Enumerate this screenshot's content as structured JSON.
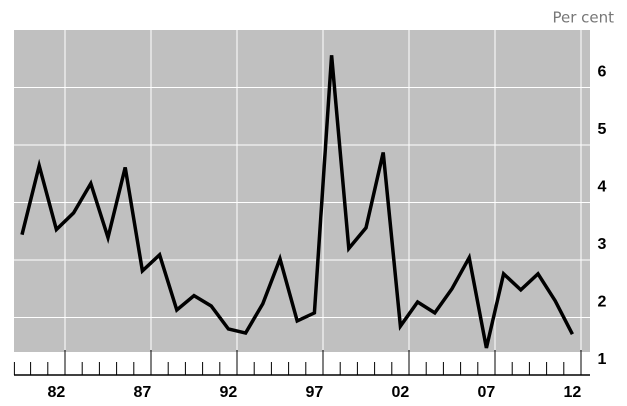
{
  "chart_data": {
    "type": "line",
    "y_label": "Per cent",
    "categories": [
      null,
      null,
      "82",
      null,
      null,
      null,
      null,
      "87",
      null,
      null,
      null,
      null,
      "92",
      null,
      null,
      null,
      null,
      "97",
      null,
      null,
      null,
      null,
      "02",
      null,
      null,
      null,
      null,
      "07",
      null,
      null,
      null,
      null,
      "12"
    ],
    "series": [
      {
        "color": "#000000",
        "values": [
          3.44,
          4.64,
          3.53,
          3.82,
          4.33,
          3.39,
          4.61,
          2.81,
          3.09,
          2.13,
          2.38,
          2.2,
          1.8,
          1.73,
          2.24,
          3.02,
          1.94,
          2.08,
          6.56,
          3.2,
          3.56,
          4.87,
          1.85,
          2.27,
          2.08,
          2.5,
          3.04,
          1.47,
          2.76,
          2.48,
          2.76,
          2.29,
          1.71
        ]
      }
    ],
    "ylim": [
      1,
      7
    ],
    "yticks": [
      1,
      2,
      3,
      4,
      5,
      6
    ],
    "grid": true
  }
}
